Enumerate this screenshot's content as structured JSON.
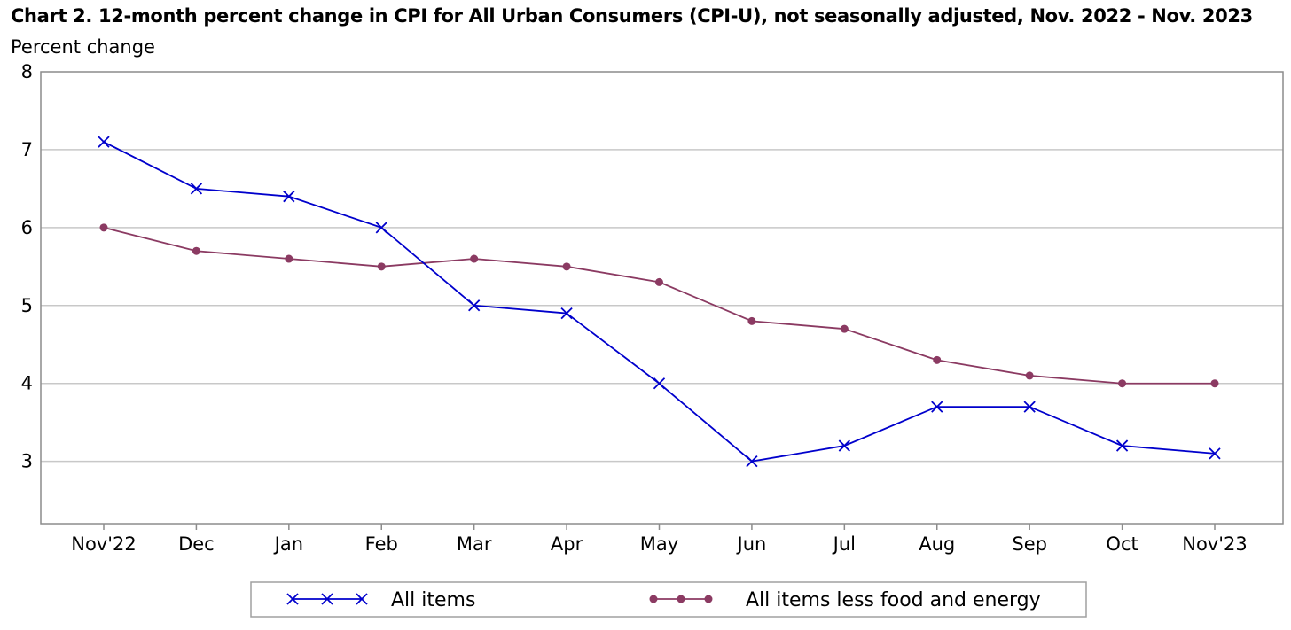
{
  "chart_data": {
    "type": "line",
    "title": "Chart 2. 12-month percent change in CPI for All Urban Consumers (CPI-U), not seasonally adjusted, Nov. 2022 - Nov. 2023",
    "ylabel": "Percent change",
    "xlabel": "",
    "categories": [
      "Nov'22",
      "Dec",
      "Jan",
      "Feb",
      "Mar",
      "Apr",
      "May",
      "Jun",
      "Jul",
      "Aug",
      "Sep",
      "Oct",
      "Nov'23"
    ],
    "ylim": [
      2.2,
      8
    ],
    "yticks": [
      3,
      4,
      5,
      6,
      7,
      8
    ],
    "grid": true,
    "legend": "bottom",
    "series": [
      {
        "name": "All items",
        "marker": "x",
        "color": "#0000cc",
        "values": [
          7.1,
          6.5,
          6.4,
          6.0,
          5.0,
          4.9,
          4.0,
          3.0,
          3.2,
          3.7,
          3.7,
          3.2,
          3.1
        ]
      },
      {
        "name": "All items less food and energy",
        "marker": "circle",
        "color": "#8b3a62",
        "values": [
          6.0,
          5.7,
          5.6,
          5.5,
          5.6,
          5.5,
          5.3,
          4.8,
          4.7,
          4.3,
          4.1,
          4.0,
          4.0
        ]
      }
    ]
  },
  "colors": {
    "grid": "#c8c8c8",
    "frame": "#8c8c8c",
    "legend_border": "#a0a0a0"
  }
}
